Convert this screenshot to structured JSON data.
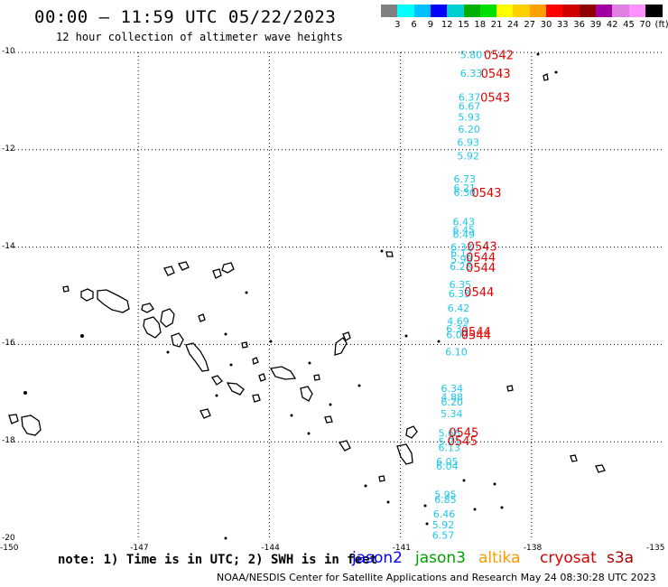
{
  "title": "00:00 — 11:59 UTC 05/22/2023",
  "subtitle": "12 hour collection of altimeter wave heights",
  "colorbar": {
    "colors": [
      "#808080",
      "#00ffff",
      "#00bfff",
      "#0000ff",
      "#00d0d0",
      "#00b000",
      "#00e000",
      "#ffff00",
      "#ffd000",
      "#ffa000",
      "#ff0000",
      "#d00000",
      "#900000",
      "#a000a0",
      "#e080e0",
      "#ff90ff",
      "#000000"
    ],
    "labels": [
      "3",
      "6",
      "9",
      "12",
      "15",
      "18",
      "21",
      "24",
      "27",
      "30",
      "33",
      "36",
      "39",
      "42",
      "45",
      "70",
      "(ft)"
    ]
  },
  "lat_labels": [
    "-10",
    "-12",
    "-14",
    "-16",
    "-18",
    "-20"
  ],
  "lon_labels": [
    "-150",
    "-147",
    "-144",
    "-141",
    "-138",
    "-135"
  ],
  "footer": {
    "note": "note: 1) Time is in UTC; 2) SWH is in feet",
    "credit": "NOAA/NESDIS Center for Satellite Applications and Research   May 24 08:30:28 UTC 2023"
  },
  "satellites": [
    {
      "name": "jason2",
      "color": "#0000ff"
    },
    {
      "name": "jason3",
      "color": "#00a000"
    },
    {
      "name": "altika",
      "color": "#ff9900"
    },
    {
      "name": "cryosat",
      "color": "#dd0000"
    },
    {
      "name": "s3a",
      "color": "#aa0000"
    }
  ],
  "map_extent": {
    "lon": [
      -150,
      -135
    ],
    "lat": [
      -20,
      -10
    ]
  },
  "heights": [
    {
      "lon": -139.38,
      "lat": -10.05,
      "v": "5.80"
    },
    {
      "lon": -139.38,
      "lat": -10.43,
      "v": "6.33"
    },
    {
      "lon": -139.42,
      "lat": -10.92,
      "v": "6.37"
    },
    {
      "lon": -139.42,
      "lat": -11.1,
      "v": "6.67"
    },
    {
      "lon": -139.43,
      "lat": -11.33,
      "v": "5.93"
    },
    {
      "lon": -139.43,
      "lat": -11.58,
      "v": "6.20"
    },
    {
      "lon": -139.45,
      "lat": -11.85,
      "v": "6.93"
    },
    {
      "lon": -139.45,
      "lat": -12.12,
      "v": "5.92"
    },
    {
      "lon": -139.53,
      "lat": -12.6,
      "v": "6.73"
    },
    {
      "lon": -139.53,
      "lat": -12.78,
      "v": "6.21"
    },
    {
      "lon": -139.53,
      "lat": -12.88,
      "v": "6.30"
    },
    {
      "lon": -139.55,
      "lat": -13.48,
      "v": "6.43"
    },
    {
      "lon": -139.55,
      "lat": -13.65,
      "v": "6.45"
    },
    {
      "lon": -139.55,
      "lat": -13.74,
      "v": "6.49"
    },
    {
      "lon": -139.6,
      "lat": -14.0,
      "v": "6.33"
    },
    {
      "lon": -139.6,
      "lat": -14.12,
      "v": "6.17"
    },
    {
      "lon": -139.6,
      "lat": -14.25,
      "v": "5.98"
    },
    {
      "lon": -139.62,
      "lat": -14.4,
      "v": "6.28"
    },
    {
      "lon": -139.63,
      "lat": -14.77,
      "v": "6.35"
    },
    {
      "lon": -139.65,
      "lat": -14.95,
      "v": "6.33"
    },
    {
      "lon": -139.67,
      "lat": -15.25,
      "v": "6.42"
    },
    {
      "lon": -139.68,
      "lat": -15.52,
      "v": "4.69"
    },
    {
      "lon": -139.7,
      "lat": -15.68,
      "v": "6.32"
    },
    {
      "lon": -139.7,
      "lat": -15.8,
      "v": "6.07"
    },
    {
      "lon": -139.72,
      "lat": -16.15,
      "v": "6.10"
    },
    {
      "lon": -139.82,
      "lat": -16.9,
      "v": "6.34"
    },
    {
      "lon": -139.82,
      "lat": -17.08,
      "v": "4.88"
    },
    {
      "lon": -139.82,
      "lat": -17.18,
      "v": "6.20"
    },
    {
      "lon": -139.83,
      "lat": -17.42,
      "v": "5.34"
    },
    {
      "lon": -139.88,
      "lat": -17.82,
      "v": "5.66"
    },
    {
      "lon": -139.88,
      "lat": -18.0,
      "v": "5.21"
    },
    {
      "lon": -139.88,
      "lat": -18.12,
      "v": "6.13"
    },
    {
      "lon": -139.93,
      "lat": -18.4,
      "v": "6.05"
    },
    {
      "lon": -139.93,
      "lat": -18.5,
      "v": "6.04"
    },
    {
      "lon": -139.97,
      "lat": -19.08,
      "v": "5.95"
    },
    {
      "lon": -139.97,
      "lat": -19.18,
      "v": "6.85"
    },
    {
      "lon": -140.0,
      "lat": -19.48,
      "v": "6.46"
    },
    {
      "lon": -140.02,
      "lat": -19.7,
      "v": "5.92"
    },
    {
      "lon": -140.02,
      "lat": -19.92,
      "v": "6.57"
    }
  ],
  "times": [
    {
      "lon": -138.75,
      "lat": -10.05,
      "v": "0542"
    },
    {
      "lon": -138.82,
      "lat": -10.43,
      "v": "0543"
    },
    {
      "lon": -138.83,
      "lat": -10.92,
      "v": "0543"
    },
    {
      "lon": -139.03,
      "lat": -12.88,
      "v": "0543"
    },
    {
      "lon": -139.13,
      "lat": -13.98,
      "v": "0543"
    },
    {
      "lon": -139.16,
      "lat": -14.2,
      "v": "0544"
    },
    {
      "lon": -139.16,
      "lat": -14.42,
      "v": "0544"
    },
    {
      "lon": -139.2,
      "lat": -14.92,
      "v": "0544"
    },
    {
      "lon": -139.27,
      "lat": -15.73,
      "v": "0544"
    },
    {
      "lon": -139.27,
      "lat": -15.8,
      "v": "0544"
    },
    {
      "lon": -139.55,
      "lat": -17.8,
      "v": "0545"
    },
    {
      "lon": -139.58,
      "lat": -17.98,
      "v": "0545"
    }
  ]
}
